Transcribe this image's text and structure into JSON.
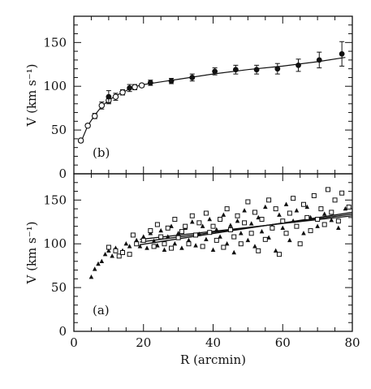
{
  "chart_data": [
    {
      "type": "line",
      "panel_label": "(b)",
      "xlabel": "",
      "ylabel": "V (km s⁻¹)",
      "xlim": [
        0,
        80
      ],
      "ylim": [
        0,
        180
      ],
      "yticks": [
        0,
        50,
        100,
        150
      ],
      "series": [
        {
          "marker": "open-circle",
          "points": [
            {
              "x": 2.0,
              "y": 38,
              "err": 2
            },
            {
              "x": 4.0,
              "y": 55,
              "err": 2
            },
            {
              "x": 6.0,
              "y": 66,
              "err": 3
            },
            {
              "x": 8.0,
              "y": 78,
              "err": 4
            },
            {
              "x": 10.0,
              "y": 84,
              "err": 4
            },
            {
              "x": 12.0,
              "y": 88,
              "err": 4
            },
            {
              "x": 14.0,
              "y": 93,
              "err": 3
            },
            {
              "x": 17.5,
              "y": 99,
              "err": 3
            },
            {
              "x": 19.5,
              "y": 101,
              "err": 2
            }
          ]
        },
        {
          "marker": "filled-circle",
          "points": [
            {
              "x": 10.0,
              "y": 88,
              "err": 7
            },
            {
              "x": 16.0,
              "y": 98,
              "err": 4
            },
            {
              "x": 22.0,
              "y": 104,
              "err": 3
            },
            {
              "x": 28.0,
              "y": 106,
              "err": 3
            },
            {
              "x": 34.0,
              "y": 110,
              "err": 4
            },
            {
              "x": 40.5,
              "y": 117,
              "err": 4
            },
            {
              "x": 46.5,
              "y": 119,
              "err": 5
            },
            {
              "x": 52.5,
              "y": 119,
              "err": 5
            },
            {
              "x": 58.5,
              "y": 120,
              "err": 6
            },
            {
              "x": 64.5,
              "y": 124,
              "err": 7
            },
            {
              "x": 70.5,
              "y": 130,
              "err": 9
            },
            {
              "x": 77.0,
              "y": 137,
              "err": 14
            }
          ]
        }
      ],
      "fit_curve": [
        {
          "x": 2,
          "y": 36
        },
        {
          "x": 4,
          "y": 55
        },
        {
          "x": 6,
          "y": 67
        },
        {
          "x": 8,
          "y": 77
        },
        {
          "x": 10,
          "y": 84
        },
        {
          "x": 12,
          "y": 89
        },
        {
          "x": 14,
          "y": 93
        },
        {
          "x": 16,
          "y": 97
        },
        {
          "x": 18,
          "y": 100
        },
        {
          "x": 20,
          "y": 102
        },
        {
          "x": 25,
          "y": 105
        },
        {
          "x": 30,
          "y": 108
        },
        {
          "x": 40,
          "y": 114
        },
        {
          "x": 50,
          "y": 119
        },
        {
          "x": 60,
          "y": 123
        },
        {
          "x": 70,
          "y": 128
        },
        {
          "x": 78,
          "y": 133
        }
      ]
    },
    {
      "type": "scatter",
      "panel_label": "(a)",
      "xlabel": "R (arcmin)",
      "ylabel": "V (km s⁻¹)",
      "xlim": [
        0,
        80
      ],
      "ylim": [
        0,
        180
      ],
      "xticks": [
        0,
        20,
        40,
        60,
        80
      ],
      "yticks": [
        0,
        50,
        100,
        150
      ],
      "series": [
        {
          "marker": "filled-triangle",
          "points": [
            {
              "x": 5,
              "y": 62
            },
            {
              "x": 6,
              "y": 71
            },
            {
              "x": 7,
              "y": 77
            },
            {
              "x": 8,
              "y": 80
            },
            {
              "x": 9,
              "y": 88
            },
            {
              "x": 10,
              "y": 92
            },
            {
              "x": 11,
              "y": 86
            },
            {
              "x": 12,
              "y": 95
            },
            {
              "x": 14,
              "y": 92
            },
            {
              "x": 15,
              "y": 100
            },
            {
              "x": 16,
              "y": 97
            },
            {
              "x": 18,
              "y": 104
            },
            {
              "x": 19,
              "y": 97
            },
            {
              "x": 20,
              "y": 108
            },
            {
              "x": 21,
              "y": 95
            },
            {
              "x": 22,
              "y": 112
            },
            {
              "x": 23,
              "y": 103
            },
            {
              "x": 24,
              "y": 98
            },
            {
              "x": 25,
              "y": 115
            },
            {
              "x": 26,
              "y": 93
            },
            {
              "x": 27,
              "y": 108
            },
            {
              "x": 28,
              "y": 120
            },
            {
              "x": 29,
              "y": 100
            },
            {
              "x": 30,
              "y": 112
            },
            {
              "x": 31,
              "y": 95
            },
            {
              "x": 32,
              "y": 118
            },
            {
              "x": 33,
              "y": 104
            },
            {
              "x": 34,
              "y": 125
            },
            {
              "x": 35,
              "y": 98
            },
            {
              "x": 36,
              "y": 111
            },
            {
              "x": 37,
              "y": 120
            },
            {
              "x": 38,
              "y": 105
            },
            {
              "x": 39,
              "y": 128
            },
            {
              "x": 40,
              "y": 93
            },
            {
              "x": 41,
              "y": 116
            },
            {
              "x": 42,
              "y": 108
            },
            {
              "x": 43,
              "y": 133
            },
            {
              "x": 44,
              "y": 100
            },
            {
              "x": 45,
              "y": 121
            },
            {
              "x": 46,
              "y": 90
            },
            {
              "x": 47,
              "y": 126
            },
            {
              "x": 48,
              "y": 112
            },
            {
              "x": 49,
              "y": 138
            },
            {
              "x": 50,
              "y": 104
            },
            {
              "x": 51,
              "y": 123
            },
            {
              "x": 52,
              "y": 97
            },
            {
              "x": 53,
              "y": 130
            },
            {
              "x": 54,
              "y": 114
            },
            {
              "x": 55,
              "y": 142
            },
            {
              "x": 56,
              "y": 107
            },
            {
              "x": 57,
              "y": 120
            },
            {
              "x": 58,
              "y": 92
            },
            {
              "x": 59,
              "y": 133
            },
            {
              "x": 60,
              "y": 118
            },
            {
              "x": 61,
              "y": 145
            },
            {
              "x": 62,
              "y": 104
            },
            {
              "x": 63,
              "y": 126
            },
            {
              "x": 64,
              "y": 138
            },
            {
              "x": 66,
              "y": 112
            },
            {
              "x": 67,
              "y": 142
            },
            {
              "x": 68,
              "y": 130
            },
            {
              "x": 70,
              "y": 120
            },
            {
              "x": 72,
              "y": 134
            },
            {
              "x": 74,
              "y": 127
            },
            {
              "x": 76,
              "y": 118
            },
            {
              "x": 78,
              "y": 140
            }
          ]
        },
        {
          "marker": "open-square",
          "points": [
            {
              "x": 10,
              "y": 96
            },
            {
              "x": 12,
              "y": 92
            },
            {
              "x": 13,
              "y": 86
            },
            {
              "x": 14,
              "y": 90
            },
            {
              "x": 16,
              "y": 88
            },
            {
              "x": 17,
              "y": 110
            },
            {
              "x": 18,
              "y": 100
            },
            {
              "x": 20,
              "y": 104
            },
            {
              "x": 22,
              "y": 115
            },
            {
              "x": 23,
              "y": 97
            },
            {
              "x": 24,
              "y": 122
            },
            {
              "x": 25,
              "y": 108
            },
            {
              "x": 26,
              "y": 100
            },
            {
              "x": 27,
              "y": 118
            },
            {
              "x": 28,
              "y": 95
            },
            {
              "x": 29,
              "y": 128
            },
            {
              "x": 30,
              "y": 107
            },
            {
              "x": 31,
              "y": 114
            },
            {
              "x": 32,
              "y": 120
            },
            {
              "x": 33,
              "y": 100
            },
            {
              "x": 34,
              "y": 132
            },
            {
              "x": 35,
              "y": 110
            },
            {
              "x": 36,
              "y": 124
            },
            {
              "x": 37,
              "y": 97
            },
            {
              "x": 38,
              "y": 135
            },
            {
              "x": 39,
              "y": 113
            },
            {
              "x": 40,
              "y": 120
            },
            {
              "x": 41,
              "y": 104
            },
            {
              "x": 42,
              "y": 128
            },
            {
              "x": 43,
              "y": 96
            },
            {
              "x": 44,
              "y": 140
            },
            {
              "x": 45,
              "y": 116
            },
            {
              "x": 46,
              "y": 108
            },
            {
              "x": 47,
              "y": 132
            },
            {
              "x": 48,
              "y": 100
            },
            {
              "x": 49,
              "y": 124
            },
            {
              "x": 50,
              "y": 148
            },
            {
              "x": 51,
              "y": 112
            },
            {
              "x": 52,
              "y": 136
            },
            {
              "x": 53,
              "y": 92
            },
            {
              "x": 54,
              "y": 128
            },
            {
              "x": 55,
              "y": 105
            },
            {
              "x": 56,
              "y": 150
            },
            {
              "x": 57,
              "y": 118
            },
            {
              "x": 58,
              "y": 140
            },
            {
              "x": 59,
              "y": 88
            },
            {
              "x": 60,
              "y": 126
            },
            {
              "x": 61,
              "y": 112
            },
            {
              "x": 62,
              "y": 135
            },
            {
              "x": 63,
              "y": 152
            },
            {
              "x": 64,
              "y": 120
            },
            {
              "x": 65,
              "y": 100
            },
            {
              "x": 66,
              "y": 145
            },
            {
              "x": 67,
              "y": 130
            },
            {
              "x": 68,
              "y": 115
            },
            {
              "x": 69,
              "y": 155
            },
            {
              "x": 70,
              "y": 128
            },
            {
              "x": 71,
              "y": 140
            },
            {
              "x": 72,
              "y": 122
            },
            {
              "x": 73,
              "y": 162
            },
            {
              "x": 74,
              "y": 136
            },
            {
              "x": 75,
              "y": 150
            },
            {
              "x": 76,
              "y": 126
            },
            {
              "x": 77,
              "y": 158
            },
            {
              "x": 79,
              "y": 142
            }
          ]
        }
      ],
      "fit_lines": [
        {
          "x": [
            19,
            80
          ],
          "y": [
            102,
            134
          ]
        },
        {
          "x": [
            19,
            80
          ],
          "y": [
            105,
            132
          ]
        },
        {
          "x": [
            19,
            80
          ],
          "y": [
            99,
            136
          ]
        }
      ]
    }
  ]
}
